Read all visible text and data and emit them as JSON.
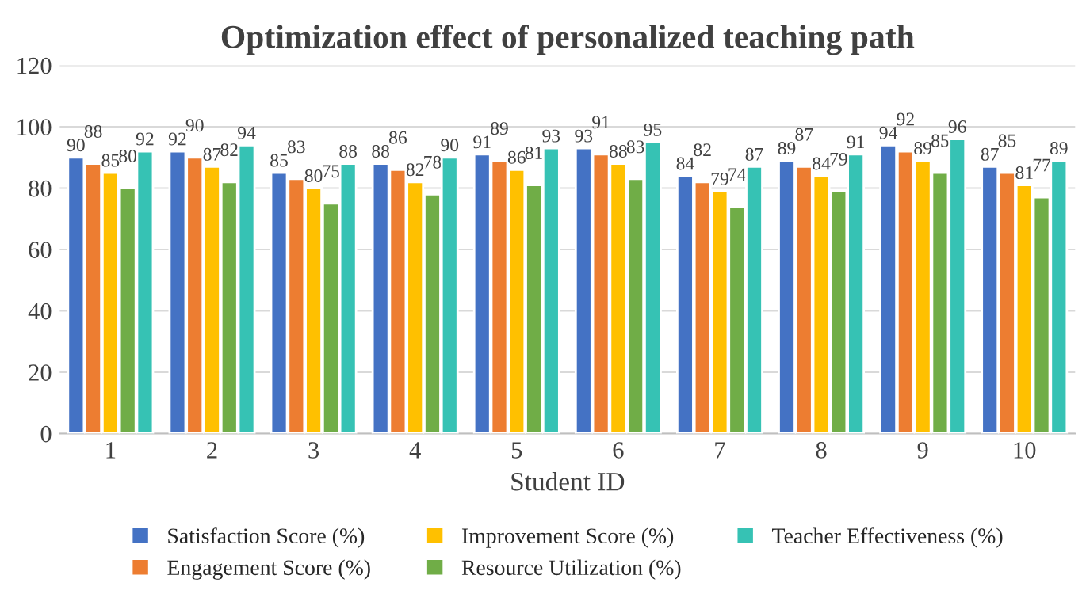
{
  "chart_data": {
    "type": "bar",
    "title": "Optimization effect of personalized teaching path",
    "xlabel": "Student ID",
    "categories": [
      "1",
      "2",
      "3",
      "4",
      "5",
      "6",
      "7",
      "8",
      "9",
      "10"
    ],
    "series": [
      {
        "name": "Satisfaction Score (%)",
        "color": "#4472c4",
        "values": [
          90,
          92,
          85,
          88,
          91,
          93,
          84,
          89,
          94,
          87
        ]
      },
      {
        "name": "Engagement Score (%)",
        "color": "#ed7d31",
        "values": [
          88,
          90,
          83,
          86,
          89,
          91,
          82,
          87,
          92,
          85
        ]
      },
      {
        "name": "Improvement Score (%)",
        "color": "#ffc000",
        "values": [
          85,
          87,
          80,
          82,
          86,
          88,
          79,
          84,
          89,
          81
        ]
      },
      {
        "name": "Resource Utilization (%)",
        "color": "#70ad47",
        "values": [
          80,
          82,
          75,
          78,
          81,
          83,
          74,
          79,
          85,
          77
        ]
      },
      {
        "name": "Teacher Effectiveness (%)",
        "color": "#36c2b4",
        "values": [
          92,
          94,
          88,
          90,
          93,
          95,
          87,
          91,
          96,
          89
        ]
      }
    ],
    "ylim": [
      0,
      120
    ],
    "yticks": [
      0,
      20,
      40,
      60,
      80,
      100,
      120
    ],
    "grid": "y",
    "legend": "bottom",
    "data_labels": true
  }
}
